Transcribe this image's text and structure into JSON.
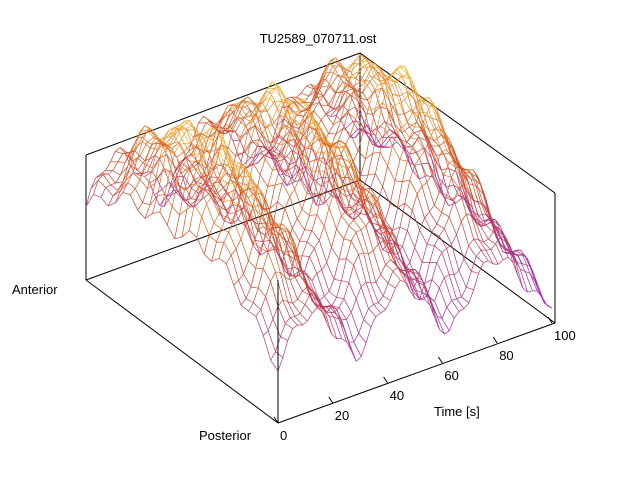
{
  "chart_data": {
    "type": "surface",
    "title": "TU2589_070711.ost",
    "xlabel": "Time [s]",
    "ylabel_top": "Anterior",
    "ylabel_bottom": "Posterior",
    "x_range": [
      0,
      100
    ],
    "x_ticks": [
      "0",
      "20",
      "40",
      "60",
      "80",
      "100"
    ],
    "description_values": {
      "wave_count": 3,
      "wave_peaks_time_s": [
        12,
        45,
        80
      ],
      "wave_period_s": 34
    },
    "colors": {
      "high": "#ffd83a",
      "mid": "#d24a1e",
      "low": "#8e20e6",
      "frame": "#000000"
    },
    "grid": false
  }
}
